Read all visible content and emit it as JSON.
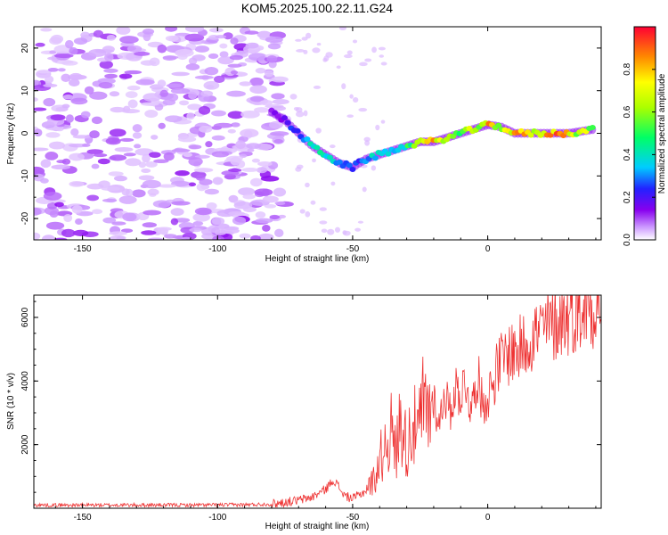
{
  "title": "KOM5.2025.100.22.11.G24",
  "colors": {
    "snr_line": "#ee3333",
    "axis": "#000000",
    "palette": [
      "#ffffff",
      "#cc99ff",
      "#8800ee",
      "#2222ff",
      "#00ccff",
      "#00ff66",
      "#ffff00",
      "#ff8800",
      "#ff0033"
    ]
  },
  "chart_data": [
    {
      "type": "heatmap",
      "title": "KOM5.2025.100.22.11.G24",
      "xlabel": "Height of straight line (km)",
      "ylabel": "Frequency (Hz)",
      "xlim": [
        -168,
        42
      ],
      "ylim": [
        -25,
        25
      ],
      "xticks": [
        -150,
        -100,
        -50,
        0
      ],
      "yticks": [
        -20,
        -10,
        0,
        10,
        20
      ],
      "colorbar": {
        "label": "Normalized spectral amplitude",
        "range": [
          0.0,
          1.0
        ],
        "ticks": [
          0.0,
          0.2,
          0.4,
          0.6,
          0.8
        ],
        "placement": "right"
      },
      "noise_region_x": [
        -168,
        -75
      ],
      "ridge": [
        {
          "x": -80,
          "y": 5,
          "a": 0.15
        },
        {
          "x": -75,
          "y": 3,
          "a": 0.2
        },
        {
          "x": -70,
          "y": 0,
          "a": 0.3
        },
        {
          "x": -65,
          "y": -3,
          "a": 0.4
        },
        {
          "x": -60,
          "y": -5,
          "a": 0.45
        },
        {
          "x": -55,
          "y": -7,
          "a": 0.3
        },
        {
          "x": -50,
          "y": -8,
          "a": 0.25
        },
        {
          "x": -45,
          "y": -6,
          "a": 0.35
        },
        {
          "x": -40,
          "y": -5,
          "a": 0.4
        },
        {
          "x": -35,
          "y": -4,
          "a": 0.45
        },
        {
          "x": -30,
          "y": -3,
          "a": 0.5
        },
        {
          "x": -25,
          "y": -2,
          "a": 0.6
        },
        {
          "x": -20,
          "y": -2,
          "a": 0.85
        },
        {
          "x": -15,
          "y": -1,
          "a": 0.7
        },
        {
          "x": -10,
          "y": 0,
          "a": 0.65
        },
        {
          "x": -5,
          "y": 1,
          "a": 0.7
        },
        {
          "x": 0,
          "y": 2,
          "a": 0.85
        },
        {
          "x": 5,
          "y": 1.5,
          "a": 0.75
        },
        {
          "x": 10,
          "y": 0,
          "a": 0.8
        },
        {
          "x": 15,
          "y": 0,
          "a": 0.85
        },
        {
          "x": 20,
          "y": 0,
          "a": 0.75
        },
        {
          "x": 25,
          "y": 0,
          "a": 0.9
        },
        {
          "x": 30,
          "y": 0,
          "a": 0.8
        },
        {
          "x": 35,
          "y": 0.5,
          "a": 0.7
        },
        {
          "x": 40,
          "y": 1,
          "a": 0.7
        }
      ]
    },
    {
      "type": "line",
      "xlabel": "Height of straight line (km)",
      "ylabel": "SNR (10 * v/v)",
      "xlim": [
        -168,
        42
      ],
      "ylim": [
        0,
        6700
      ],
      "xticks": [
        -150,
        -100,
        -50,
        0
      ],
      "yticks": [
        2000,
        4000,
        6000
      ],
      "series": [
        {
          "x": [
            -168,
            -140,
            -110,
            -90,
            -80,
            -70,
            -65,
            -60,
            -57,
            -53,
            -50,
            -46,
            -42,
            -40,
            -38,
            -36,
            -34,
            -32,
            -30,
            -28,
            -26,
            -24,
            -22,
            -20,
            -18,
            -16,
            -14,
            -12,
            -10,
            -8,
            -6,
            -4,
            -2,
            0,
            4,
            8,
            12,
            16,
            20,
            24,
            28,
            32,
            36,
            40,
            42
          ],
          "y": [
            100,
            100,
            100,
            110,
            130,
            250,
            350,
            600,
            900,
            400,
            300,
            500,
            900,
            1500,
            2000,
            2500,
            1700,
            3000,
            1800,
            2800,
            2200,
            3200,
            2900,
            3500,
            2600,
            3700,
            3000,
            3800,
            3600,
            4000,
            3000,
            4300,
            3300,
            3500,
            4500,
            4900,
            5000,
            5400,
            5600,
            5800,
            6000,
            6200,
            6300,
            6450,
            6600
          ]
        }
      ]
    }
  ]
}
